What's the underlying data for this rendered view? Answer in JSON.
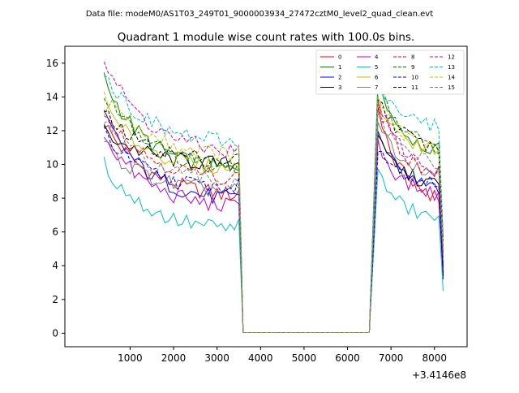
{
  "figure": {
    "suptitle": "Data file: modeM0/AS1T03_249T01_9000003934_27472cztM0_level2_quad_clean.evt",
    "title": "Quadrant 1 module wise count rates with 100.0s bins.",
    "offset_label": "+3.4146e8"
  },
  "chart_data": {
    "type": "line",
    "xlim": [
      -500,
      8750
    ],
    "ylim": [
      -0.8,
      17.0
    ],
    "x_offset": 341460000,
    "xticks": [
      1000,
      2000,
      3000,
      4000,
      5000,
      6000,
      7000,
      8000
    ],
    "yticks": [
      0,
      2,
      4,
      6,
      8,
      10,
      12,
      14,
      16
    ],
    "grid": false,
    "legend_position": "top-right",
    "segments": [
      {
        "x_start": 400,
        "x_end": 3500
      },
      {
        "x_start": 3600,
        "x_end": 6500
      },
      {
        "x_start": 6700,
        "x_end": 8200
      }
    ],
    "series": [
      {
        "name": "0",
        "color": "#ff0000",
        "dash": false,
        "seg1": [
          12.5,
          8.0
        ],
        "seg3": [
          13.2,
          7.6,
          4.0
        ]
      },
      {
        "name": "1",
        "color": "#008000",
        "dash": false,
        "seg1": [
          15.1,
          9.4
        ],
        "seg3": [
          15.0,
          10.5,
          4.8
        ]
      },
      {
        "name": "2",
        "color": "#0000ff",
        "dash": false,
        "seg1": [
          12.9,
          7.7
        ],
        "seg3": [
          11.8,
          8.3,
          3.2
        ]
      },
      {
        "name": "3",
        "color": "#000000",
        "dash": false,
        "seg1": [
          12.0,
          9.9
        ],
        "seg3": [
          11.5,
          8.6,
          3.4
        ]
      },
      {
        "name": "4",
        "color": "#c000c0",
        "dash": false,
        "seg1": [
          11.8,
          7.3
        ],
        "seg3": [
          11.2,
          8.0,
          4.1
        ]
      },
      {
        "name": "5",
        "color": "#00c0c0",
        "dash": false,
        "seg1": [
          10.0,
          6.0
        ],
        "seg3": [
          9.5,
          6.6,
          2.5
        ]
      },
      {
        "name": "6",
        "color": "#c0c000",
        "dash": false,
        "seg1": [
          13.4,
          9.6
        ],
        "seg3": [
          13.8,
          10.6,
          5.2
        ]
      },
      {
        "name": "7",
        "color": "#808080",
        "dash": false,
        "seg1": [
          11.2,
          8.3
        ],
        "seg3": [
          12.6,
          9.3,
          4.5
        ]
      },
      {
        "name": "8",
        "color": "#ff0000",
        "dash": true,
        "seg1": [
          13.3,
          9.0
        ],
        "seg3": [
          13.5,
          9.2,
          3.8
        ]
      },
      {
        "name": "9",
        "color": "#008000",
        "dash": true,
        "seg1": [
          14.3,
          9.7
        ],
        "seg3": [
          14.6,
          10.8,
          5.0
        ]
      },
      {
        "name": "10",
        "color": "#0000ff",
        "dash": true,
        "seg1": [
          11.9,
          8.4
        ],
        "seg3": [
          11.2,
          8.7,
          3.6
        ]
      },
      {
        "name": "11",
        "color": "#000000",
        "dash": true,
        "seg1": [
          13.0,
          10.1
        ],
        "seg3": [
          14.0,
          10.8,
          5.5
        ]
      },
      {
        "name": "12",
        "color": "#c000c0",
        "dash": true,
        "seg1": [
          16.2,
          10.5
        ],
        "seg3": [
          14.0,
          9.3,
          4.5
        ]
      },
      {
        "name": "13",
        "color": "#00c0c0",
        "dash": true,
        "seg1": [
          15.4,
          11.1
        ],
        "seg3": [
          15.1,
          12.0,
          5.8
        ]
      },
      {
        "name": "14",
        "color": "#c0c000",
        "dash": true,
        "seg1": [
          14.3,
          10.4
        ],
        "seg3": [
          14.2,
          10.5,
          5.0
        ]
      },
      {
        "name": "15",
        "color": "#808080",
        "dash": true,
        "seg1": [
          12.6,
          8.8
        ],
        "seg3": [
          12.9,
          9.9,
          4.6
        ]
      }
    ]
  }
}
